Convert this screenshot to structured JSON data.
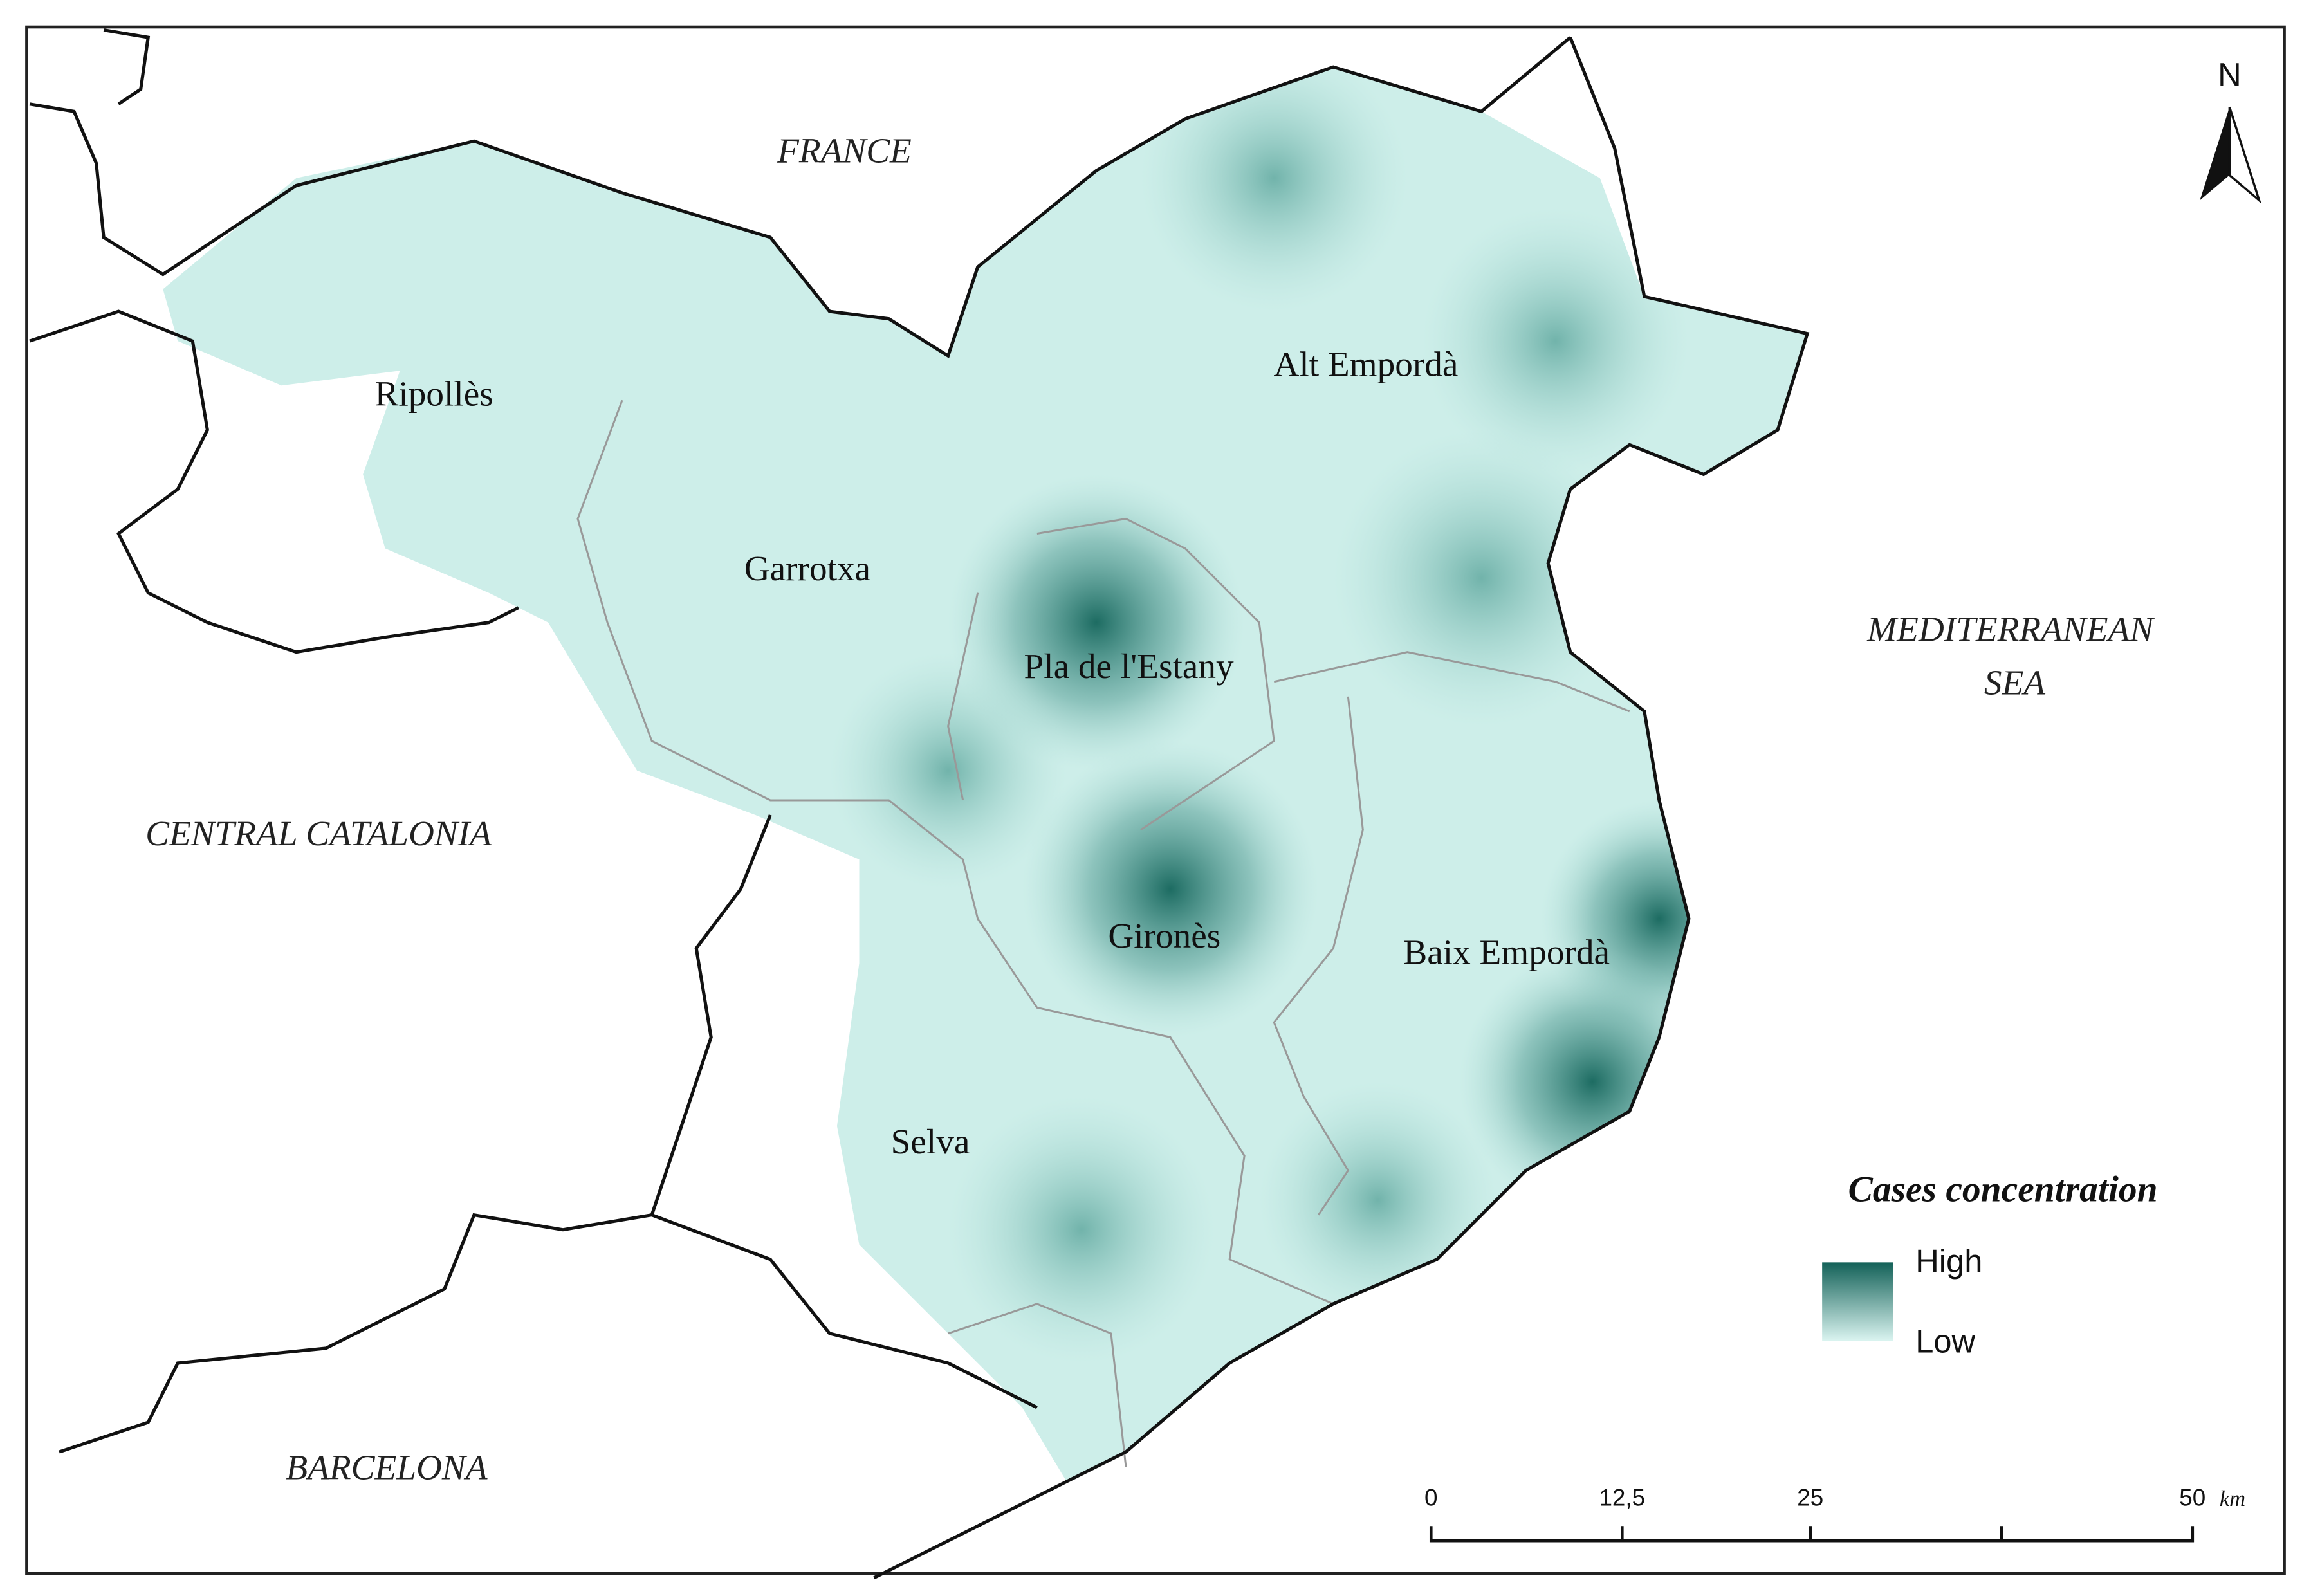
{
  "map": {
    "neighbours": {
      "france": "FRANCE",
      "central_catalonia": "CENTRAL CATALONIA",
      "barcelona": "BARCELONA",
      "sea": [
        "MEDITERRANEAN",
        "SEA"
      ]
    },
    "regions": [
      "Ripollès",
      "Garrotxa",
      "Alt Empordà",
      "Pla de l'Estany",
      "Gironès",
      "Baix Empordà",
      "Selva"
    ],
    "north": "N",
    "legend": {
      "title": "Cases concentration",
      "high": "High",
      "low": "Low"
    },
    "scale": {
      "ticks": [
        "0",
        "12,5",
        "25",
        "50"
      ],
      "unit": "km"
    }
  }
}
